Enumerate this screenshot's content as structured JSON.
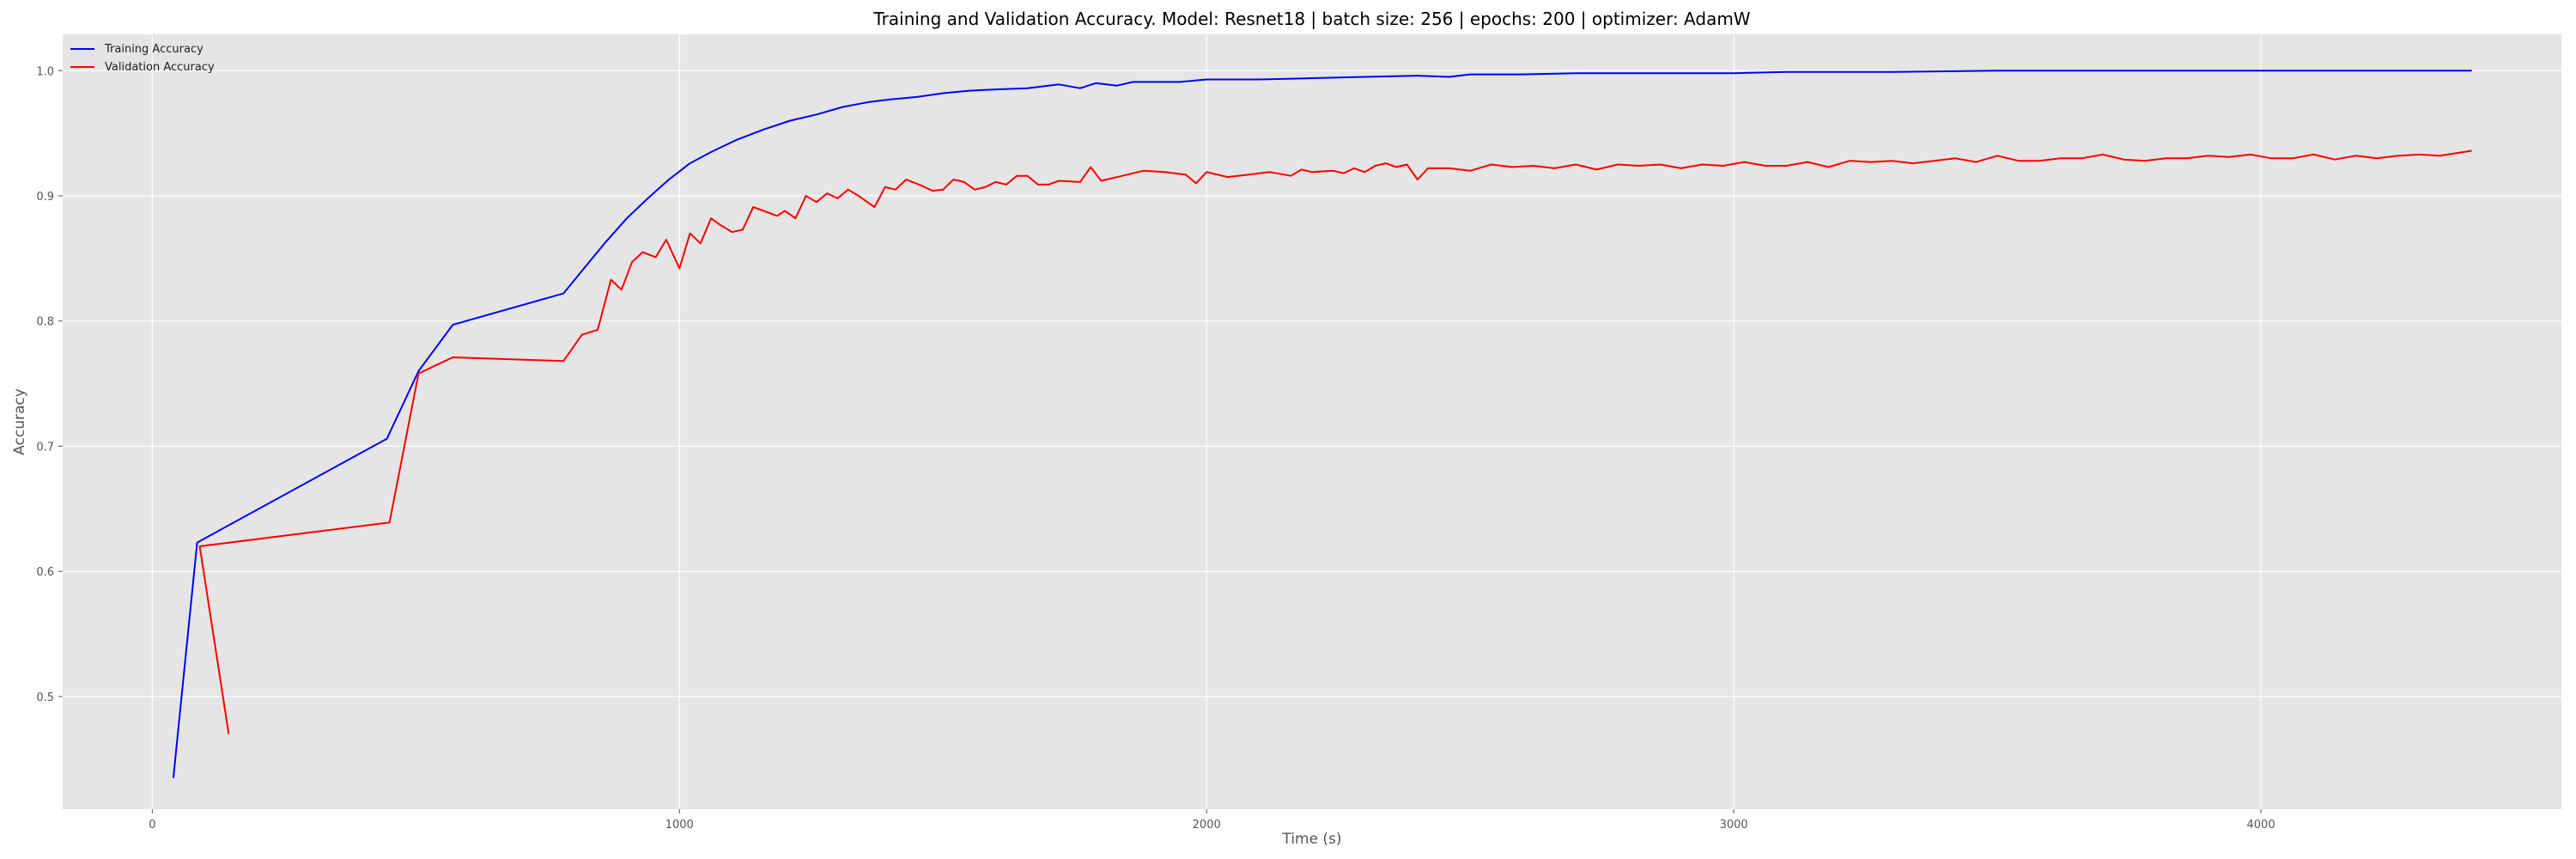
{
  "chart_data": {
    "type": "line",
    "title": "Training and Validation Accuracy. Model: Resnet18 | batch size: 256 | epochs: 200 | optimizer: AdamW",
    "xlabel": "Time (s)",
    "ylabel": "Accuracy",
    "xlim": [
      -170,
      4570
    ],
    "ylim": [
      0.41,
      1.029
    ],
    "xticks": [
      0,
      1000,
      2000,
      3000,
      4000
    ],
    "yticks": [
      0.5,
      0.6,
      0.7,
      0.8,
      0.9,
      1.0
    ],
    "ytick_labels": [
      "0.5",
      "0.6",
      "0.7",
      "0.8",
      "0.9",
      "1.0"
    ],
    "grid": true,
    "legend_position": "top-left",
    "colors": {
      "background": "#e5e5e5",
      "grid": "#ffffff",
      "training": "#0000ff",
      "validation": "#ff0000"
    },
    "series": [
      {
        "name": "Training Accuracy",
        "color": "#0000ff",
        "points": [
          [
            40,
            0.435
          ],
          [
            85,
            0.623
          ],
          [
            445,
            0.706
          ],
          [
            505,
            0.76
          ],
          [
            570,
            0.797
          ],
          [
            780,
            0.822
          ],
          [
            815,
            0.84
          ],
          [
            860,
            0.863
          ],
          [
            900,
            0.882
          ],
          [
            940,
            0.898
          ],
          [
            980,
            0.913
          ],
          [
            1020,
            0.926
          ],
          [
            1060,
            0.935
          ],
          [
            1110,
            0.945
          ],
          [
            1160,
            0.953
          ],
          [
            1210,
            0.96
          ],
          [
            1260,
            0.965
          ],
          [
            1310,
            0.971
          ],
          [
            1360,
            0.975
          ],
          [
            1400,
            0.977
          ],
          [
            1450,
            0.979
          ],
          [
            1500,
            0.982
          ],
          [
            1550,
            0.984
          ],
          [
            1600,
            0.985
          ],
          [
            1660,
            0.986
          ],
          [
            1720,
            0.989
          ],
          [
            1760,
            0.986
          ],
          [
            1790,
            0.99
          ],
          [
            1830,
            0.988
          ],
          [
            1860,
            0.991
          ],
          [
            1900,
            0.991
          ],
          [
            1950,
            0.991
          ],
          [
            2000,
            0.993
          ],
          [
            2100,
            0.993
          ],
          [
            2200,
            0.994
          ],
          [
            2300,
            0.995
          ],
          [
            2400,
            0.996
          ],
          [
            2460,
            0.995
          ],
          [
            2500,
            0.997
          ],
          [
            2600,
            0.997
          ],
          [
            2700,
            0.998
          ],
          [
            2800,
            0.998
          ],
          [
            2900,
            0.998
          ],
          [
            3000,
            0.998
          ],
          [
            3100,
            0.999
          ],
          [
            3300,
            0.999
          ],
          [
            3500,
            1.0
          ],
          [
            3800,
            1.0
          ],
          [
            4100,
            1.0
          ],
          [
            4400,
            1.0
          ]
        ]
      },
      {
        "name": "Validation Accuracy",
        "color": "#ff0000",
        "points": [
          [
            145,
            0.47
          ],
          [
            90,
            0.62
          ],
          [
            450,
            0.639
          ],
          [
            505,
            0.758
          ],
          [
            570,
            0.771
          ],
          [
            780,
            0.768
          ],
          [
            815,
            0.789
          ],
          [
            845,
            0.793
          ],
          [
            870,
            0.833
          ],
          [
            890,
            0.825
          ],
          [
            910,
            0.847
          ],
          [
            930,
            0.855
          ],
          [
            955,
            0.851
          ],
          [
            975,
            0.865
          ],
          [
            1000,
            0.842
          ],
          [
            1020,
            0.87
          ],
          [
            1040,
            0.862
          ],
          [
            1060,
            0.882
          ],
          [
            1080,
            0.876
          ],
          [
            1100,
            0.871
          ],
          [
            1120,
            0.873
          ],
          [
            1140,
            0.891
          ],
          [
            1160,
            0.888
          ],
          [
            1185,
            0.884
          ],
          [
            1200,
            0.888
          ],
          [
            1220,
            0.882
          ],
          [
            1240,
            0.9
          ],
          [
            1260,
            0.895
          ],
          [
            1280,
            0.902
          ],
          [
            1300,
            0.898
          ],
          [
            1320,
            0.905
          ],
          [
            1340,
            0.9
          ],
          [
            1370,
            0.891
          ],
          [
            1390,
            0.907
          ],
          [
            1410,
            0.905
          ],
          [
            1430,
            0.913
          ],
          [
            1460,
            0.908
          ],
          [
            1480,
            0.904
          ],
          [
            1500,
            0.905
          ],
          [
            1520,
            0.913
          ],
          [
            1540,
            0.911
          ],
          [
            1560,
            0.905
          ],
          [
            1580,
            0.907
          ],
          [
            1600,
            0.911
          ],
          [
            1620,
            0.909
          ],
          [
            1640,
            0.916
          ],
          [
            1660,
            0.916
          ],
          [
            1680,
            0.909
          ],
          [
            1700,
            0.909
          ],
          [
            1720,
            0.912
          ],
          [
            1760,
            0.911
          ],
          [
            1780,
            0.923
          ],
          [
            1800,
            0.912
          ],
          [
            1840,
            0.916
          ],
          [
            1880,
            0.92
          ],
          [
            1920,
            0.919
          ],
          [
            1960,
            0.917
          ],
          [
            1980,
            0.91
          ],
          [
            2000,
            0.919
          ],
          [
            2040,
            0.915
          ],
          [
            2080,
            0.917
          ],
          [
            2120,
            0.919
          ],
          [
            2160,
            0.916
          ],
          [
            2180,
            0.921
          ],
          [
            2200,
            0.919
          ],
          [
            2240,
            0.92
          ],
          [
            2260,
            0.918
          ],
          [
            2280,
            0.922
          ],
          [
            2300,
            0.919
          ],
          [
            2320,
            0.924
          ],
          [
            2340,
            0.926
          ],
          [
            2360,
            0.923
          ],
          [
            2380,
            0.925
          ],
          [
            2400,
            0.913
          ],
          [
            2420,
            0.922
          ],
          [
            2460,
            0.922
          ],
          [
            2500,
            0.92
          ],
          [
            2540,
            0.925
          ],
          [
            2580,
            0.923
          ],
          [
            2620,
            0.924
          ],
          [
            2660,
            0.922
          ],
          [
            2700,
            0.925
          ],
          [
            2740,
            0.921
          ],
          [
            2780,
            0.925
          ],
          [
            2820,
            0.924
          ],
          [
            2860,
            0.925
          ],
          [
            2900,
            0.922
          ],
          [
            2940,
            0.925
          ],
          [
            2980,
            0.924
          ],
          [
            3020,
            0.927
          ],
          [
            3060,
            0.924
          ],
          [
            3100,
            0.924
          ],
          [
            3140,
            0.927
          ],
          [
            3180,
            0.923
          ],
          [
            3220,
            0.928
          ],
          [
            3260,
            0.927
          ],
          [
            3300,
            0.928
          ],
          [
            3340,
            0.926
          ],
          [
            3380,
            0.928
          ],
          [
            3420,
            0.93
          ],
          [
            3460,
            0.927
          ],
          [
            3500,
            0.932
          ],
          [
            3540,
            0.928
          ],
          [
            3580,
            0.928
          ],
          [
            3620,
            0.93
          ],
          [
            3660,
            0.93
          ],
          [
            3700,
            0.933
          ],
          [
            3740,
            0.929
          ],
          [
            3780,
            0.928
          ],
          [
            3820,
            0.93
          ],
          [
            3860,
            0.93
          ],
          [
            3900,
            0.932
          ],
          [
            3940,
            0.931
          ],
          [
            3980,
            0.933
          ],
          [
            4020,
            0.93
          ],
          [
            4060,
            0.93
          ],
          [
            4100,
            0.933
          ],
          [
            4140,
            0.929
          ],
          [
            4180,
            0.932
          ],
          [
            4220,
            0.93
          ],
          [
            4260,
            0.932
          ],
          [
            4300,
            0.933
          ],
          [
            4340,
            0.932
          ],
          [
            4400,
            0.936
          ]
        ]
      }
    ]
  }
}
